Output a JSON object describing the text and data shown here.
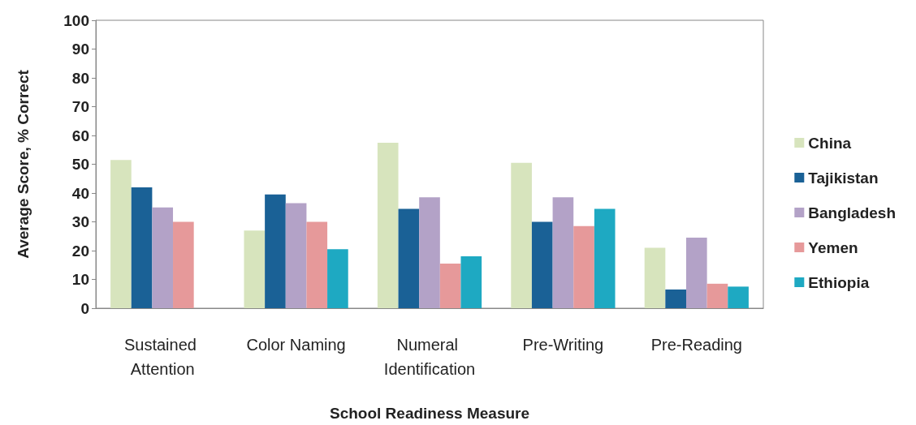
{
  "chart_data": {
    "type": "bar",
    "xlabel": "School Readiness Measure",
    "ylabel": "Average Score, % Correct",
    "categories": [
      "Sustained Attention",
      "Color Naming",
      "Numeral Identification",
      "Pre-Writing",
      "Pre-Reading"
    ],
    "series": [
      {
        "name": "China",
        "color": "#d7e4bd",
        "values": [
          51.5,
          27,
          57.5,
          50.5,
          21
        ]
      },
      {
        "name": "Tajikistan",
        "color": "#1a6196",
        "values": [
          42,
          39.5,
          34.5,
          30,
          6.5
        ]
      },
      {
        "name": "Bangladesh",
        "color": "#b3a2c7",
        "values": [
          35,
          36.5,
          38.5,
          38.5,
          24.5
        ]
      },
      {
        "name": "Yemen",
        "color": "#e6999a",
        "values": [
          30,
          30,
          15.5,
          28.5,
          8.5
        ]
      },
      {
        "name": "Ethiopia",
        "color": "#1ea9c2",
        "values": [
          null,
          20.5,
          18,
          34.5,
          7.5
        ]
      }
    ],
    "ylim": [
      0,
      100
    ],
    "yticks": [
      0,
      10,
      20,
      30,
      40,
      50,
      60,
      70,
      80,
      90,
      100
    ],
    "grid": false,
    "legend": "right"
  }
}
